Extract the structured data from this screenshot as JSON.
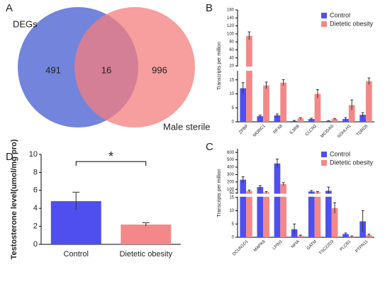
{
  "chart_data": [
    {
      "type": "venn",
      "panel": "A",
      "sets": [
        {
          "name": "DEGs",
          "color": "#5b6fd6"
        },
        {
          "name": "Male sterile",
          "color": "#f47e7e"
        }
      ],
      "values": [
        491,
        16,
        996
      ]
    },
    {
      "type": "brokenbar",
      "panel": "B",
      "ylabel": "Transcripts per million",
      "categories": [
        "ZPBP",
        "MORC1",
        "RFX8",
        "IL3RB",
        "CLCN2",
        "MCIDAS",
        "SOHLH1",
        "TDRD5"
      ],
      "series": [
        {
          "name": "Control",
          "color": "#4f4ff0",
          "values": [
            12,
            2,
            2.3,
            0.3,
            1,
            0.3,
            1,
            2.5
          ],
          "errors": [
            2,
            0.4,
            0.5,
            0.2,
            0.3,
            0.1,
            0.5,
            0.8
          ]
        },
        {
          "name": "Dietetic obesity",
          "color": "#f48888",
          "values": [
            95,
            13,
            14,
            1.2,
            10,
            1,
            6,
            14.5
          ],
          "errors": [
            10,
            1.2,
            1.1,
            0.3,
            1.5,
            0.2,
            1.8,
            1.2
          ]
        }
      ],
      "ylim": [
        0,
        160
      ],
      "ybreak": [
        18,
        20
      ],
      "yticks": [
        0,
        5,
        10,
        15,
        20,
        40,
        60,
        80,
        100,
        120,
        140,
        160
      ]
    },
    {
      "type": "bar",
      "panel": "D",
      "ylabel": "Testosterone level(umol/mg pro)",
      "categories": [
        "Control",
        "Dietetic obesity"
      ],
      "colors": [
        "#4f4ff0",
        "#f48888"
      ],
      "values": [
        4.8,
        2.2
      ],
      "errors": [
        1.0,
        0.2
      ],
      "ylim": [
        0,
        10
      ],
      "yticks": [
        0,
        2,
        4,
        6,
        8,
        10
      ],
      "annotation": "*"
    },
    {
      "type": "brokenbar",
      "panel": "C",
      "ylabel": "Transcripts per million",
      "categories": [
        "DCUN1D1",
        "MAPK6",
        "LPIN1",
        "NFIA",
        "GATM",
        "TSC22D3",
        "PLCB1",
        "PTPN11"
      ],
      "series": [
        {
          "name": "Control",
          "color": "#4f4ff0",
          "values": [
            230,
            130,
            450,
            3,
            70,
            80,
            1.2,
            6
          ],
          "errors": [
            40,
            20,
            60,
            2,
            15,
            50,
            0.4,
            4
          ]
        },
        {
          "name": "Dietetic obesity",
          "color": "#f48888",
          "values": [
            75,
            60,
            170,
            0.5,
            60,
            11,
            0.3,
            0.8
          ],
          "errors": [
            15,
            10,
            20,
            0.3,
            10,
            2,
            0.2,
            0.4
          ]
        }
      ],
      "ylim": [
        0,
        650
      ],
      "ybreak": [
        15,
        50
      ],
      "yticks": [
        0,
        5,
        10,
        15,
        50,
        100,
        200,
        300,
        400,
        500,
        600
      ]
    }
  ]
}
